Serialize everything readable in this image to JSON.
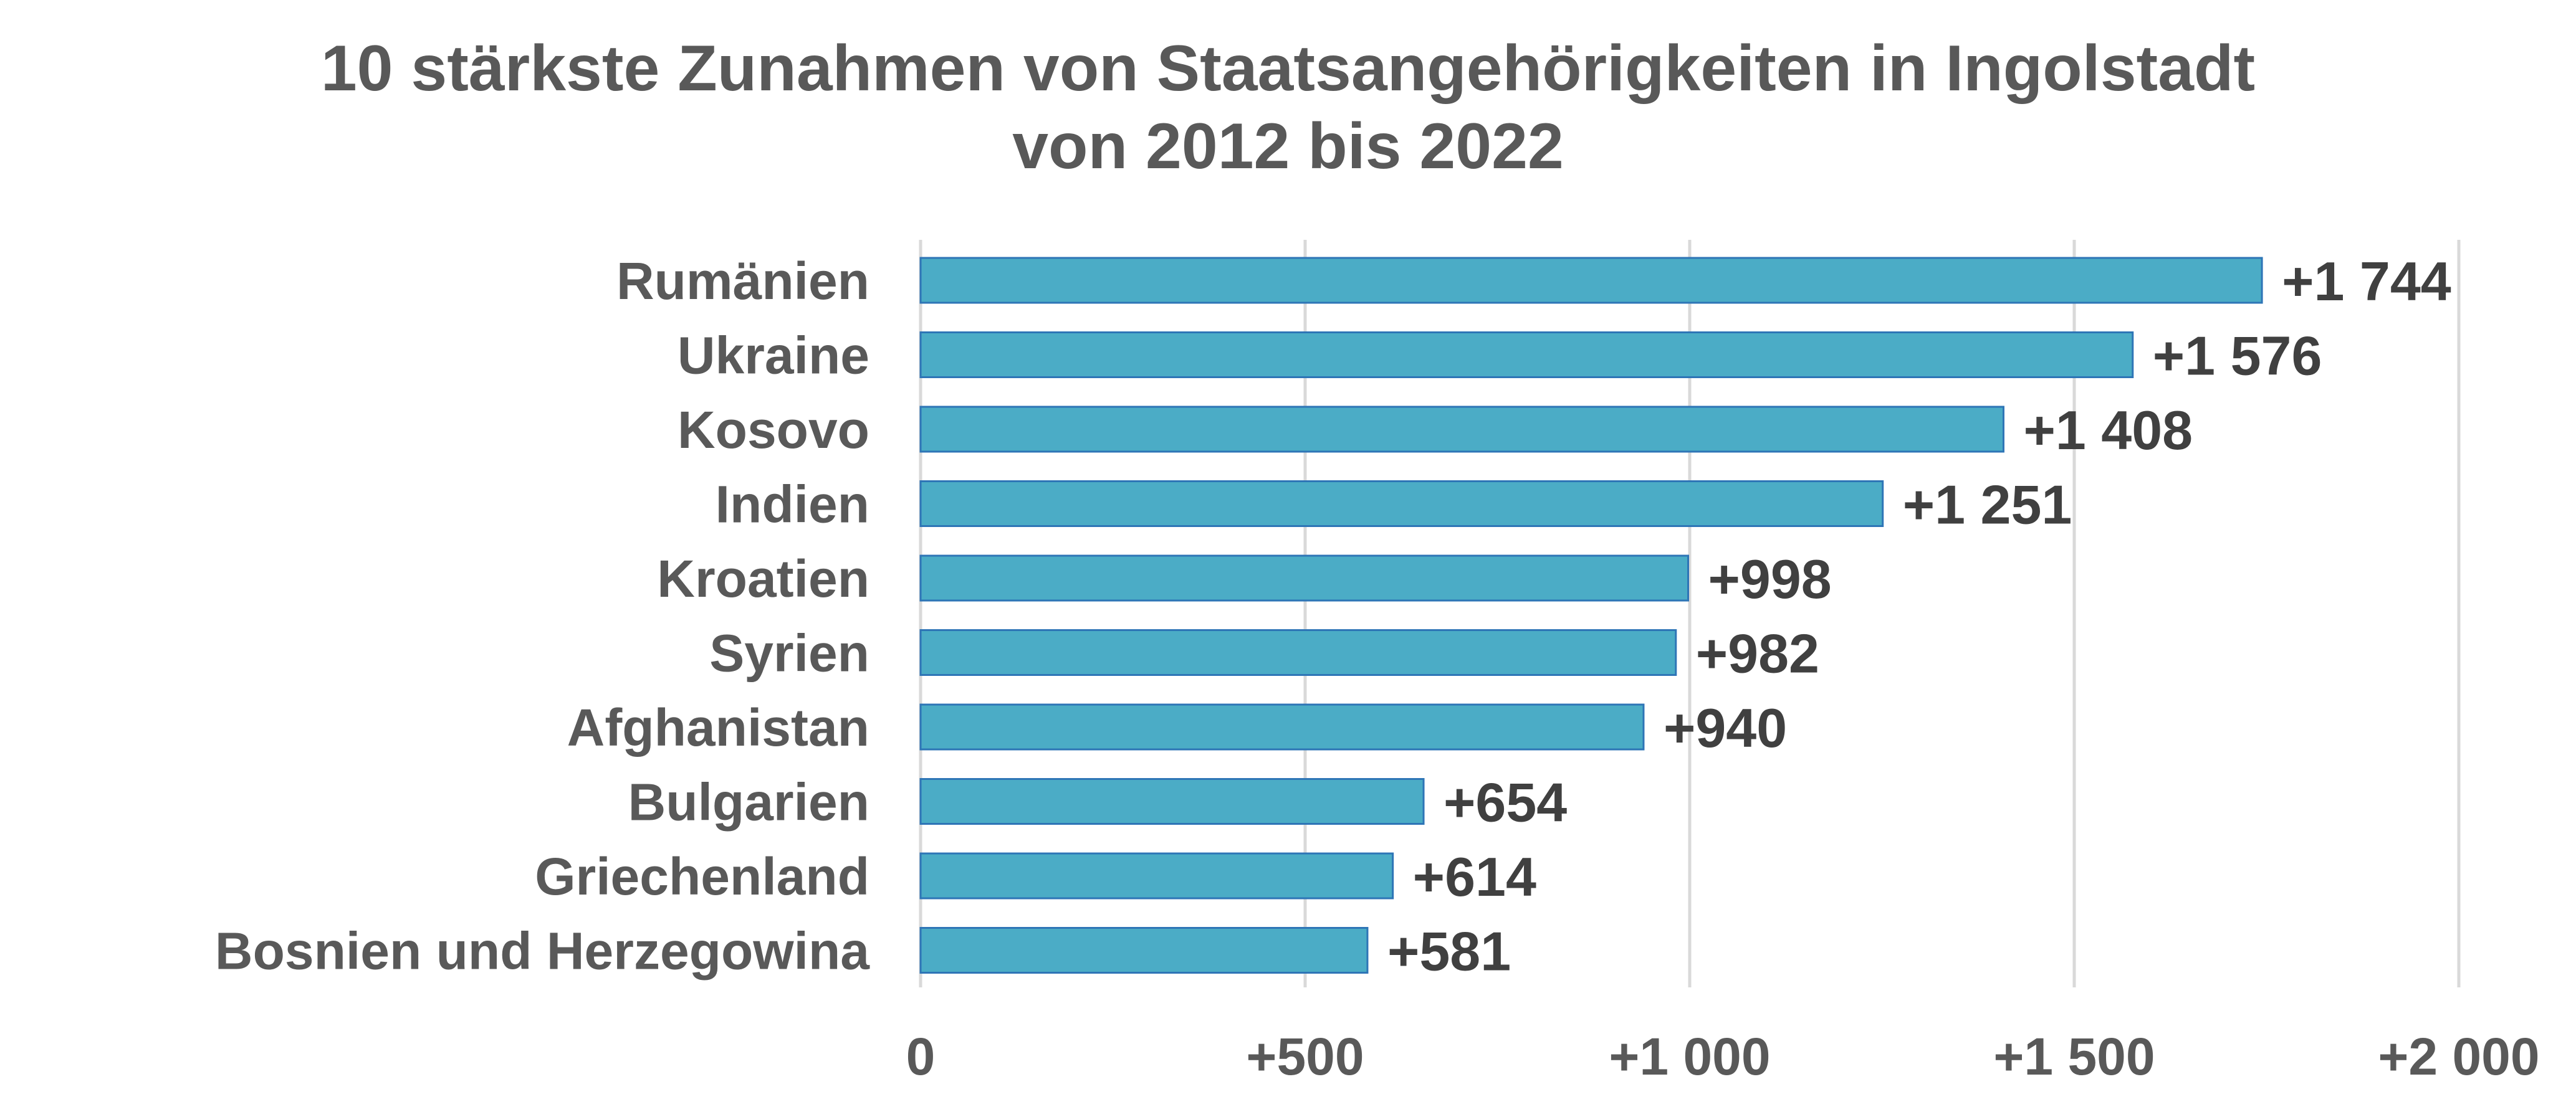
{
  "chart_data": {
    "type": "bar",
    "orientation": "horizontal",
    "title_lines": [
      "10 stärkste Zunahmen von Staatsangehörigkeiten in Ingolstadt",
      "von 2012 bis 2022"
    ],
    "categories": [
      "Rumänien",
      "Ukraine",
      "Kosovo",
      "Indien",
      "Kroatien",
      "Syrien",
      "Afghanistan",
      "Bulgarien",
      "Griechenland",
      "Bosnien und Herzegowina"
    ],
    "values": [
      1744,
      1576,
      1408,
      1251,
      998,
      982,
      940,
      654,
      614,
      581
    ],
    "data_labels": [
      "+1 744",
      "+1 576",
      "+1 408",
      "+1 251",
      "+998",
      "+982",
      "+940",
      "+654",
      "+614",
      "+581"
    ],
    "xlim": [
      0,
      2000
    ],
    "xticks": [
      0,
      500,
      1000,
      1500,
      2000
    ],
    "xtick_labels": [
      "0",
      "+500",
      "+1 000",
      "+1 500",
      "+2 000"
    ],
    "grid": "vertical",
    "legend": "none",
    "colors": {
      "bar_fill": "#4bacc6",
      "bar_border": "#2e75b6",
      "text": "#595959",
      "data_label": "#404040",
      "grid": "#d9d9d9"
    }
  }
}
